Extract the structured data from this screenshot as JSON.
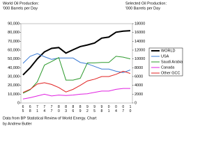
{
  "chart_data": {
    "type": "line",
    "y_title": [
      "World Oil Production:",
      "'000 Barrels per Day"
    ],
    "y2_title": [
      "Selected Oil Production:",
      "'000 Barrels per Day"
    ],
    "source": [
      "Data from BP Statistical Review of World Energy. Chart",
      "by Andrew Butler"
    ],
    "categories": [
      "65",
      "68",
      "71",
      "74",
      "77",
      "80",
      "83",
      "86",
      "89",
      "92",
      "95",
      "98",
      "01",
      "04",
      "07",
      "10"
    ],
    "ylim": [
      0,
      90000
    ],
    "yticks": [
      0,
      {
        "value": 10000,
        "label": "10,000"
      },
      {
        "value": 20000,
        "label": "20,000"
      },
      {
        "value": 30000,
        "label": "30,000"
      },
      {
        "value": 40000,
        "label": "40,000"
      },
      {
        "value": 50000,
        "label": "50,000"
      },
      {
        "value": 60000,
        "label": "60,000"
      },
      {
        "value": 70000,
        "label": "70,000"
      },
      {
        "value": 80000,
        "label": "80,000"
      },
      {
        "value": 90000,
        "label": "90,000"
      }
    ],
    "y2lim": [
      0,
      18000
    ],
    "y2ticks": [
      0,
      2000,
      4000,
      6000,
      8000,
      10000,
      12000,
      14000,
      16000,
      18000
    ],
    "series": [
      {
        "name": "WORLD",
        "color": "#000000",
        "width": 2,
        "values": [
          31800,
          40000,
          50000,
          58000,
          62000,
          62900,
          56600,
          60400,
          64000,
          65800,
          68000,
          73600,
          74800,
          80300,
          81500,
          82000
        ]
      },
      {
        "name": "USA",
        "color": "#3a7bd5",
        "axis": "y2",
        "values": [
          9000,
          10600,
          11200,
          10500,
          9900,
          10200,
          10200,
          10200,
          9200,
          8900,
          8300,
          7700,
          7700,
          7200,
          6900,
          7500
        ]
      },
      {
        "name": "Saudi Arabia",
        "color": "#2e9a2e",
        "axis": "y2",
        "values": [
          2200,
          3000,
          4800,
          8600,
          9400,
          10300,
          5200,
          5200,
          5600,
          9100,
          9100,
          9200,
          9200,
          10600,
          10400,
          10000
        ]
      },
      {
        "name": "Canada",
        "color": "#e020e0",
        "axis": "y2",
        "values": [
          900,
          1200,
          1600,
          2000,
          1600,
          1800,
          1700,
          1800,
          2000,
          2100,
          2400,
          2700,
          2700,
          3100,
          3300,
          3300
        ]
      },
      {
        "name": "Other GCC",
        "color": "#e02020",
        "axis": "y2",
        "values": [
          2400,
          3100,
          4300,
          4600,
          4200,
          3500,
          2500,
          3100,
          4000,
          5000,
          5400,
          6000,
          6000,
          6500,
          7200,
          6700
        ]
      }
    ]
  }
}
